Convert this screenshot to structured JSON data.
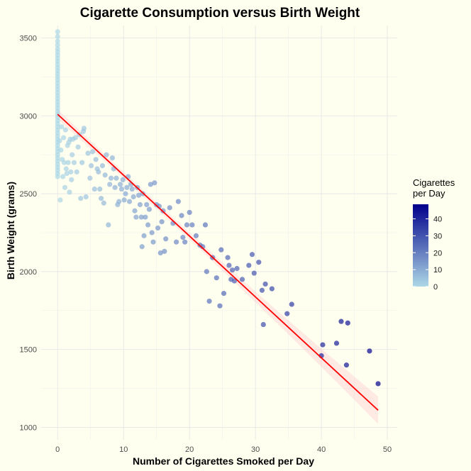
{
  "chart_data": {
    "type": "scatter",
    "title": "Cigarette Consumption versus Birth Weight",
    "xlabel": "Number of Cigarettes Smoked per Day",
    "ylabel": "Birth Weight (grams)",
    "xlim": [
      -2.5,
      51.5
    ],
    "ylim": [
      920,
      3580
    ],
    "x_ticks": [
      0,
      10,
      20,
      30,
      40,
      50
    ],
    "y_ticks": [
      1000,
      1500,
      2000,
      2500,
      3000,
      3500
    ],
    "grid": true,
    "legend": {
      "title_lines": [
        "Cigarettes",
        "per Day"
      ],
      "ticks": [
        0,
        10,
        20,
        30,
        40
      ],
      "range": [
        0,
        48.6
      ],
      "color_low": "#ADD8E6",
      "color_high": "#00008B",
      "position": "right"
    },
    "point_opacity": 0.7,
    "fit_line": {
      "color": "#FF0000",
      "band_color": "#FFC0CB",
      "x": [
        0,
        48.6
      ],
      "y": [
        3010,
        1110
      ]
    },
    "points": [
      [
        0,
        3540
      ],
      [
        0,
        3510
      ],
      [
        0,
        3480
      ],
      [
        0,
        3455
      ],
      [
        0,
        3430
      ],
      [
        0,
        3410
      ],
      [
        0,
        3390
      ],
      [
        0,
        3370
      ],
      [
        0,
        3350
      ],
      [
        0,
        3330
      ],
      [
        0,
        3310
      ],
      [
        0,
        3290
      ],
      [
        0,
        3270
      ],
      [
        0,
        3250
      ],
      [
        0,
        3230
      ],
      [
        0,
        3210
      ],
      [
        0,
        3190
      ],
      [
        0,
        3170
      ],
      [
        0,
        3150
      ],
      [
        0,
        3130
      ],
      [
        0,
        3110
      ],
      [
        0,
        3090
      ],
      [
        0,
        3070
      ],
      [
        0,
        3050
      ],
      [
        0,
        3030
      ],
      [
        0,
        3010
      ],
      [
        0,
        2990
      ],
      [
        0,
        2970
      ],
      [
        0,
        2950
      ],
      [
        0,
        2930
      ],
      [
        0,
        2910
      ],
      [
        0,
        2890
      ],
      [
        0,
        2870
      ],
      [
        0,
        2850
      ],
      [
        0,
        2830
      ],
      [
        0,
        2810
      ],
      [
        0,
        2790
      ],
      [
        0,
        2770
      ],
      [
        0,
        2750
      ],
      [
        0,
        2730
      ],
      [
        0,
        2710
      ],
      [
        0,
        2690
      ],
      [
        0,
        2670
      ],
      [
        0,
        2650
      ],
      [
        0,
        2630
      ],
      [
        0,
        2610
      ],
      [
        0.3,
        2840
      ],
      [
        0.4,
        2460
      ],
      [
        0.5,
        2780
      ],
      [
        0.6,
        2930
      ],
      [
        0.7,
        2720
      ],
      [
        0.8,
        2610
      ],
      [
        0.9,
        2860
      ],
      [
        1.0,
        2700
      ],
      [
        1.1,
        2540
      ],
      [
        1.2,
        2910
      ],
      [
        1.3,
        2660
      ],
      [
        1.4,
        2630
      ],
      [
        1.5,
        2810
      ],
      [
        1.6,
        2700
      ],
      [
        1.7,
        2830
      ],
      [
        1.8,
        2510
      ],
      [
        1.9,
        2850
      ],
      [
        2.0,
        2640
      ],
      [
        2.1,
        2590
      ],
      [
        2.2,
        2750
      ],
      [
        2.3,
        2850
      ],
      [
        2.5,
        2700
      ],
      [
        2.7,
        2860
      ],
      [
        2.9,
        2640
      ],
      [
        3.1,
        2800
      ],
      [
        3.3,
        2880
      ],
      [
        3.5,
        2470
      ],
      [
        3.7,
        2700
      ],
      [
        3.9,
        2900
      ],
      [
        4.0,
        2920
      ],
      [
        4.3,
        2480
      ],
      [
        4.6,
        2760
      ],
      [
        4.9,
        2600
      ],
      [
        5.1,
        2680
      ],
      [
        5.3,
        2770
      ],
      [
        5.6,
        2530
      ],
      [
        5.8,
        2720
      ],
      [
        6.0,
        2660
      ],
      [
        6.2,
        2640
      ],
      [
        6.4,
        2530
      ],
      [
        6.6,
        2470
      ],
      [
        6.8,
        2680
      ],
      [
        7.0,
        2440
      ],
      [
        7.2,
        2620
      ],
      [
        7.4,
        2750
      ],
      [
        7.7,
        2300
      ],
      [
        7.9,
        2560
      ],
      [
        8.1,
        2600
      ],
      [
        8.3,
        2730
      ],
      [
        8.5,
        2660
      ],
      [
        8.7,
        2540
      ],
      [
        8.9,
        2600
      ],
      [
        9.1,
        2430
      ],
      [
        9.3,
        2450
      ],
      [
        9.5,
        2560
      ],
      [
        9.7,
        2530
      ],
      [
        9.9,
        2590
      ],
      [
        10.1,
        2460
      ],
      [
        10.3,
        2500
      ],
      [
        10.5,
        2540
      ],
      [
        10.7,
        2610
      ],
      [
        10.9,
        2450
      ],
      [
        11.1,
        2560
      ],
      [
        11.3,
        2530
      ],
      [
        11.5,
        2480
      ],
      [
        11.7,
        2390
      ],
      [
        11.9,
        2350
      ],
      [
        12.1,
        2540
      ],
      [
        12.3,
        2490
      ],
      [
        12.5,
        2430
      ],
      [
        12.7,
        2350
      ],
      [
        12.8,
        2160
      ],
      [
        12.9,
        2500
      ],
      [
        13.1,
        2230
      ],
      [
        13.3,
        2350
      ],
      [
        13.5,
        2430
      ],
      [
        13.7,
        2300
      ],
      [
        13.9,
        2400
      ],
      [
        14.1,
        2560
      ],
      [
        14.3,
        2250
      ],
      [
        14.5,
        2190
      ],
      [
        14.7,
        2570
      ],
      [
        15.0,
        2430
      ],
      [
        15.2,
        2280
      ],
      [
        15.4,
        2420
      ],
      [
        15.6,
        2120
      ],
      [
        15.8,
        2320
      ],
      [
        16.0,
        2390
      ],
      [
        16.2,
        2130
      ],
      [
        16.4,
        2210
      ],
      [
        17.0,
        2410
      ],
      [
        17.5,
        2310
      ],
      [
        18.0,
        2190
      ],
      [
        18.3,
        2450
      ],
      [
        18.8,
        2360
      ],
      [
        19.0,
        2220
      ],
      [
        19.3,
        2190
      ],
      [
        19.6,
        2300
      ],
      [
        20.0,
        2380
      ],
      [
        20.4,
        2300
      ],
      [
        21.0,
        2230
      ],
      [
        21.6,
        2170
      ],
      [
        22.0,
        2160
      ],
      [
        22.4,
        2300
      ],
      [
        22.6,
        2000
      ],
      [
        23.0,
        1810
      ],
      [
        23.5,
        2090
      ],
      [
        24.1,
        1960
      ],
      [
        24.6,
        1780
      ],
      [
        24.8,
        2140
      ],
      [
        25.2,
        1860
      ],
      [
        25.8,
        2090
      ],
      [
        26.0,
        2040
      ],
      [
        26.3,
        1950
      ],
      [
        26.5,
        2010
      ],
      [
        26.8,
        1940
      ],
      [
        27.2,
        2020
      ],
      [
        28.0,
        1950
      ],
      [
        29.0,
        2040
      ],
      [
        29.5,
        2110
      ],
      [
        29.8,
        1990
      ],
      [
        30.5,
        2060
      ],
      [
        31.0,
        1880
      ],
      [
        31.2,
        1660
      ],
      [
        31.5,
        1920
      ],
      [
        32.5,
        1890
      ],
      [
        34.8,
        1730
      ],
      [
        35.5,
        1790
      ],
      [
        40.0,
        1460
      ],
      [
        40.2,
        1530
      ],
      [
        42.3,
        1540
      ],
      [
        43.0,
        1680
      ],
      [
        43.8,
        1400
      ],
      [
        44.0,
        1670
      ],
      [
        47.3,
        1490
      ],
      [
        48.6,
        1280
      ]
    ]
  }
}
